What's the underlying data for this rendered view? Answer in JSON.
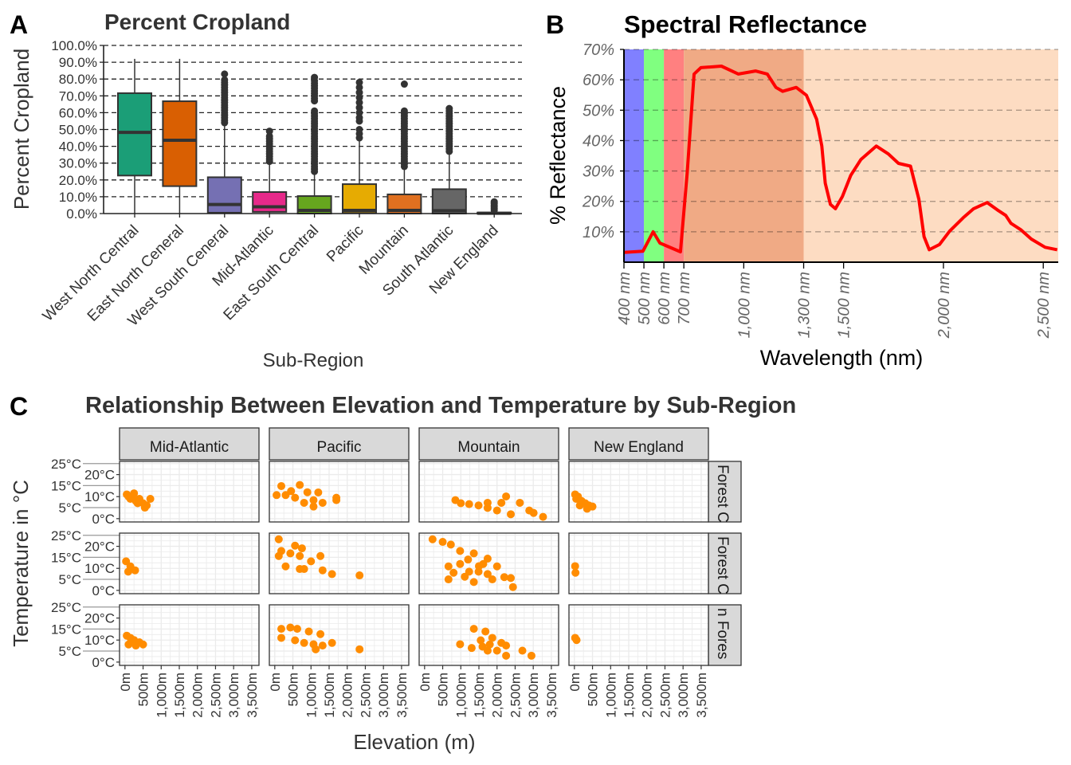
{
  "panels": {
    "a_tag": "A",
    "b_tag": "B",
    "c_tag": "C"
  },
  "chart_data": [
    {
      "type": "boxplot",
      "title": "Percent Cropland",
      "xlabel": "Sub-Region",
      "ylabel": "Percent Cropland",
      "ylim": [
        0,
        100
      ],
      "yticks": [
        "0.0%",
        "10.0%",
        "20.0%",
        "30.0%",
        "40.0%",
        "50.0%",
        "60.0%",
        "70.0%",
        "80.0%",
        "90.0%",
        "100.0%"
      ],
      "grid": "horizontal dashed",
      "categories": [
        "West North Central",
        "East North Ceneral",
        "West South Ceneral",
        "Mid-Atlantic",
        "East South Central",
        "Pacific",
        "Mountain",
        "South Atlantic",
        "New England"
      ],
      "colors": [
        "#1B9E77",
        "#D95F02",
        "#7570B3",
        "#E7298A",
        "#66A61E",
        "#E6AB02",
        "#E07020",
        "#666666",
        "#333333"
      ],
      "boxes": [
        {
          "min": 0,
          "q1": 22.6,
          "median": 48.3,
          "q3": 71.6,
          "max": 92,
          "outliers": []
        },
        {
          "min": 0,
          "q1": 16.3,
          "median": 43.6,
          "q3": 66.8,
          "max": 92,
          "outliers": []
        },
        {
          "min": 0,
          "q1": 0.5,
          "median": 5.4,
          "q3": 21.6,
          "max": 53,
          "outliers": [
            54,
            55.5,
            57,
            58.5,
            60,
            61.5,
            63,
            64.5,
            66,
            67.5,
            69,
            70.5,
            72,
            73.5,
            75,
            76.5,
            78,
            79.5,
            83
          ]
        },
        {
          "min": 0,
          "q1": 1,
          "median": 4,
          "q3": 12.8,
          "max": 30,
          "outliers": [
            31,
            32.5,
            34,
            35.5,
            37,
            38.5,
            40,
            41.5,
            43,
            44.5,
            46,
            49
          ]
        },
        {
          "min": 0,
          "q1": 0,
          "median": 1.9,
          "q3": 10.4,
          "max": 24,
          "outliers": [
            25,
            26.5,
            28,
            29.5,
            31,
            32.5,
            34,
            35.5,
            37,
            38.5,
            40,
            41.5,
            43,
            44.5,
            46,
            47.5,
            49,
            50.5,
            52,
            53.5,
            55,
            56.5,
            58,
            59.5,
            61,
            67,
            68.5,
            70,
            71.5,
            73,
            74.5,
            76,
            77.5,
            79,
            81
          ]
        },
        {
          "min": 0,
          "q1": 0.3,
          "median": 1.9,
          "q3": 17.5,
          "max": 44,
          "outliers": [
            45,
            47.5,
            50,
            55,
            57,
            60,
            63,
            66,
            69,
            72,
            75,
            78
          ]
        },
        {
          "min": 0,
          "q1": 0,
          "median": 1.9,
          "q3": 11.4,
          "max": 27,
          "outliers": [
            28,
            29.5,
            31,
            32.5,
            34,
            35.5,
            37,
            38.5,
            40,
            41.5,
            43,
            44.5,
            46,
            47.5,
            49,
            50.5,
            52,
            53.5,
            55,
            56.5,
            58,
            59.5,
            61,
            77
          ]
        },
        {
          "min": 0,
          "q1": 0,
          "median": 1.7,
          "q3": 14.5,
          "max": 36,
          "outliers": [
            37,
            38.5,
            40,
            41.5,
            43,
            44.5,
            46,
            47.5,
            49,
            50.5,
            52,
            53.5,
            55,
            56.5,
            58,
            59.5,
            61,
            62.5
          ]
        },
        {
          "min": 0,
          "q1": 0,
          "median": 0.2,
          "q3": 0.6,
          "max": 1.5,
          "outliers": [
            2,
            3,
            4,
            5,
            6,
            7
          ]
        }
      ]
    },
    {
      "type": "line",
      "title": "Spectral Reflectance",
      "xlabel": "Wavelength (nm)",
      "ylabel": "% Reflectance",
      "xlim": [
        400,
        2575
      ],
      "ylim": [
        0,
        70
      ],
      "xticks": [
        400,
        500,
        600,
        700,
        1000,
        1300,
        1500,
        2000,
        2500
      ],
      "xtick_labels": [
        "400 nm",
        "500 nm",
        "600 nm",
        "700 nm",
        "1,000 nm",
        "1,300 nm",
        "1,500 nm",
        "2,000 nm",
        "2,500 nm"
      ],
      "yticks": [
        10,
        20,
        30,
        40,
        50,
        60,
        70
      ],
      "ytick_labels": [
        "10%",
        "20%",
        "30%",
        "40%",
        "50%",
        "60%",
        "70%"
      ],
      "grid": "horizontal dashed",
      "bands": [
        {
          "from": 400,
          "to": 500,
          "color": "#8080FF"
        },
        {
          "from": 500,
          "to": 600,
          "color": "#80FF80"
        },
        {
          "from": 600,
          "to": 700,
          "color": "#FF8080"
        },
        {
          "from": 700,
          "to": 1300,
          "color": "#F0AA85"
        },
        {
          "from": 1300,
          "to": 2575,
          "color": "#FDDCC2"
        }
      ],
      "line_color": "#FF0000",
      "x": [
        400,
        495,
        546,
        580,
        683,
        717,
        751,
        785,
        888,
        973,
        1059,
        1118,
        1161,
        1195,
        1263,
        1314,
        1365,
        1391,
        1408,
        1434,
        1459,
        1494,
        1536,
        1587,
        1664,
        1724,
        1775,
        1835,
        1877,
        1903,
        1929,
        1980,
        2031,
        2099,
        2151,
        2219,
        2270,
        2312,
        2338,
        2389,
        2440,
        2509,
        2570
      ],
      "y": [
        3.2,
        3.6,
        10,
        6.3,
        3.4,
        29.5,
        61.9,
        64,
        64.5,
        61.9,
        62.9,
        61.9,
        57.5,
        56.2,
        57.5,
        54.9,
        47,
        38.2,
        26,
        19,
        17.6,
        21.6,
        28.6,
        33.8,
        38.2,
        35.6,
        32.5,
        31.6,
        20.7,
        8.4,
        4.1,
        5.8,
        10.2,
        14.6,
        17.6,
        19.6,
        17.2,
        15.4,
        12.8,
        10.6,
        7.6,
        4.9,
        4.1
      ]
    },
    {
      "type": "scatter",
      "title": "Relationship Between Elevation and Temperature by Sub-Region",
      "xlabel": "Elevation (m)",
      "ylabel": "Temperature in °C",
      "xlim": [
        0,
        3550
      ],
      "ylim": [
        -1.5,
        26
      ],
      "xtick_values": [
        0,
        500,
        1000,
        1500,
        2000,
        2500,
        3000,
        3500
      ],
      "xtick_labels": [
        "0m",
        "500m",
        "1,000m",
        "1,500m",
        "2,000m",
        "2,500m",
        "3,000m",
        "3,500m"
      ],
      "ytick_values": [
        0,
        5,
        10,
        15,
        20,
        25
      ],
      "ytick_labels": [
        "0°C",
        "5°C",
        "10°C",
        "15°C",
        "20°C",
        "25°C"
      ],
      "point_color": "#FF8C00",
      "columns": [
        "Mid-Atlantic",
        "Pacific",
        "Mountain",
        "New England"
      ],
      "rows": [
        "Forest C",
        "Forest C",
        "n Fores"
      ],
      "facets": [
        [
          [
            [
              50,
              11
            ],
            [
              100,
              10
            ],
            [
              150,
              9
            ],
            [
              200,
              10
            ],
            [
              300,
              8
            ],
            [
              400,
              9
            ],
            [
              500,
              7
            ],
            [
              600,
              6
            ],
            [
              700,
              9
            ],
            [
              550,
              5
            ],
            [
              250,
              11.5
            ],
            [
              350,
              7
            ]
          ],
          [
            [
              180,
              14.8
            ],
            [
              690,
              15.3
            ],
            [
              300,
              10.7
            ],
            [
              1200,
              11.9
            ],
            [
              1070,
              8.4
            ],
            [
              1700,
              9.5
            ],
            [
              560,
              9.5
            ],
            [
              810,
              7.2
            ],
            [
              1320,
              7.2
            ],
            [
              1070,
              5.5
            ],
            [
              1700,
              8.4
            ],
            [
              50,
              10.7
            ],
            [
              900,
              12
            ],
            [
              450,
              12.5
            ]
          ],
          [
            [
              850,
              8.4
            ],
            [
              1230,
              6.6
            ],
            [
              1740,
              4.9
            ],
            [
              2000,
              3.7
            ],
            [
              2250,
              10.1
            ],
            [
              2380,
              2
            ],
            [
              2630,
              7.2
            ],
            [
              2890,
              3.7
            ],
            [
              3270,
              0.8
            ],
            [
              1740,
              7.2
            ],
            [
              2120,
              7.2
            ],
            [
              1490,
              6
            ],
            [
              3010,
              2.6
            ],
            [
              1000,
              7
            ]
          ],
          [
            [
              20,
              11
            ],
            [
              100,
              10
            ],
            [
              200,
              8
            ],
            [
              300,
              7
            ],
            [
              400,
              6
            ],
            [
              500,
              5.5
            ],
            [
              150,
              6
            ],
            [
              350,
              4.5
            ],
            [
              50,
              9
            ]
          ]
        ],
        [
          [
            [
              30,
              13.2
            ],
            [
              150,
              10.9
            ],
            [
              280,
              9.1
            ],
            [
              90,
              8.5
            ]
          ],
          [
            [
              110,
              23.2
            ],
            [
              180,
              17.9
            ],
            [
              560,
              20.3
            ],
            [
              750,
              19.1
            ],
            [
              690,
              15.6
            ],
            [
              1260,
              15.6
            ],
            [
              1000,
              13.2
            ],
            [
              300,
              10.9
            ],
            [
              690,
              9.7
            ],
            [
              810,
              9.7
            ],
            [
              1320,
              9.1
            ],
            [
              1580,
              7.4
            ],
            [
              2340,
              6.8
            ],
            [
              110,
              15.6
            ],
            [
              430,
              16.8
            ]
          ],
          [
            [
              220,
              23.2
            ],
            [
              500,
              22
            ],
            [
              725,
              20.8
            ],
            [
              980,
              17.9
            ],
            [
              1360,
              16.8
            ],
            [
              1740,
              14.4
            ],
            [
              2000,
              10.9
            ],
            [
              2380,
              5.6
            ],
            [
              2440,
              1.5
            ],
            [
              660,
              10.9
            ],
            [
              660,
              5
            ],
            [
              1110,
              6.2
            ],
            [
              1490,
              8.5
            ],
            [
              1740,
              7.4
            ],
            [
              1870,
              5
            ],
            [
              1360,
              3.8
            ],
            [
              980,
              12
            ],
            [
              1230,
              8.5
            ],
            [
              1620,
              12
            ],
            [
              1200,
              14
            ],
            [
              1500,
              11
            ],
            [
              2200,
              6
            ],
            [
              800,
              8
            ]
          ],
          [
            [
              20,
              11
            ],
            [
              30,
              8
            ]
          ]
        ],
        [
          [
            [
              50,
              12
            ],
            [
              150,
              11
            ],
            [
              250,
              10
            ],
            [
              400,
              9
            ],
            [
              500,
              8
            ],
            [
              300,
              7.5
            ],
            [
              100,
              8
            ]
          ],
          [
            [
              180,
              15.1
            ],
            [
              430,
              15.7
            ],
            [
              620,
              15.1
            ],
            [
              940,
              13.9
            ],
            [
              1260,
              12.7
            ],
            [
              180,
              11
            ],
            [
              560,
              9.9
            ],
            [
              810,
              8.7
            ],
            [
              1130,
              5.8
            ],
            [
              1320,
              7.5
            ],
            [
              1580,
              8.7
            ],
            [
              2340,
              5.8
            ],
            [
              1070,
              8.1
            ]
          ],
          [
            [
              980,
              8.1
            ],
            [
              1300,
              6.4
            ],
            [
              1360,
              15.1
            ],
            [
              1680,
              13.9
            ],
            [
              1550,
              9.9
            ],
            [
              1870,
              11
            ],
            [
              2000,
              5.2
            ],
            [
              2250,
              2.9
            ],
            [
              2250,
              7.5
            ],
            [
              2700,
              5.2
            ],
            [
              2950,
              2.9
            ],
            [
              1740,
              5.2
            ],
            [
              2120,
              8.7
            ],
            [
              1800,
              8
            ],
            [
              1600,
              7
            ]
          ],
          [
            [
              20,
              11
            ],
            [
              60,
              10
            ]
          ]
        ]
      ]
    }
  ]
}
